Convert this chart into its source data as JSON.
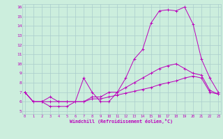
{
  "xlabel": "Windchill (Refroidissement éolien,°C)",
  "bg_color": "#cceedd",
  "line_color": "#bb00bb",
  "grid_color": "#aacccc",
  "xmin": 0,
  "xmax": 23,
  "ymin": 5,
  "ymax": 16,
  "line1_x": [
    0,
    1,
    2,
    3,
    4,
    5,
    6,
    7,
    8,
    9,
    10,
    11,
    12,
    13,
    14,
    15,
    16,
    17,
    18,
    19,
    20,
    21,
    22,
    23
  ],
  "line1_y": [
    7.0,
    6.0,
    6.0,
    5.5,
    5.5,
    5.5,
    6.0,
    8.5,
    7.0,
    6.0,
    6.0,
    7.0,
    8.5,
    10.5,
    11.5,
    14.3,
    15.6,
    15.7,
    15.6,
    16.0,
    14.2,
    10.5,
    8.5,
    7.0
  ],
  "line2_x": [
    0,
    1,
    2,
    3,
    4,
    5,
    6,
    7,
    8,
    9,
    10,
    11,
    12,
    13,
    14,
    15,
    16,
    17,
    18,
    19,
    20,
    21,
    22,
    23
  ],
  "line2_y": [
    7.0,
    6.0,
    6.0,
    6.5,
    6.0,
    6.0,
    6.0,
    6.0,
    6.5,
    6.5,
    7.0,
    7.0,
    7.5,
    8.0,
    8.5,
    9.0,
    9.5,
    9.8,
    10.0,
    9.5,
    9.0,
    8.8,
    7.2,
    6.8
  ],
  "line3_x": [
    0,
    1,
    2,
    3,
    4,
    5,
    6,
    7,
    8,
    9,
    10,
    11,
    12,
    13,
    14,
    15,
    16,
    17,
    18,
    19,
    20,
    21,
    22,
    23
  ],
  "line3_y": [
    7.0,
    6.0,
    6.0,
    6.0,
    6.0,
    6.0,
    6.0,
    6.0,
    6.3,
    6.3,
    6.5,
    6.7,
    6.9,
    7.1,
    7.3,
    7.5,
    7.8,
    8.0,
    8.2,
    8.5,
    8.7,
    8.5,
    7.0,
    6.8
  ],
  "xtick_labels": [
    "0",
    "1",
    "2",
    "3",
    "4",
    "5",
    "6",
    "7",
    "8",
    "9",
    "10",
    "11",
    "12",
    "13",
    "14",
    "15",
    "16",
    "17",
    "18",
    "19",
    "20",
    "21",
    "22",
    "23"
  ],
  "ytick_labels": [
    "5",
    "6",
    "7",
    "8",
    "9",
    "10",
    "11",
    "12",
    "13",
    "14",
    "15",
    "16"
  ]
}
